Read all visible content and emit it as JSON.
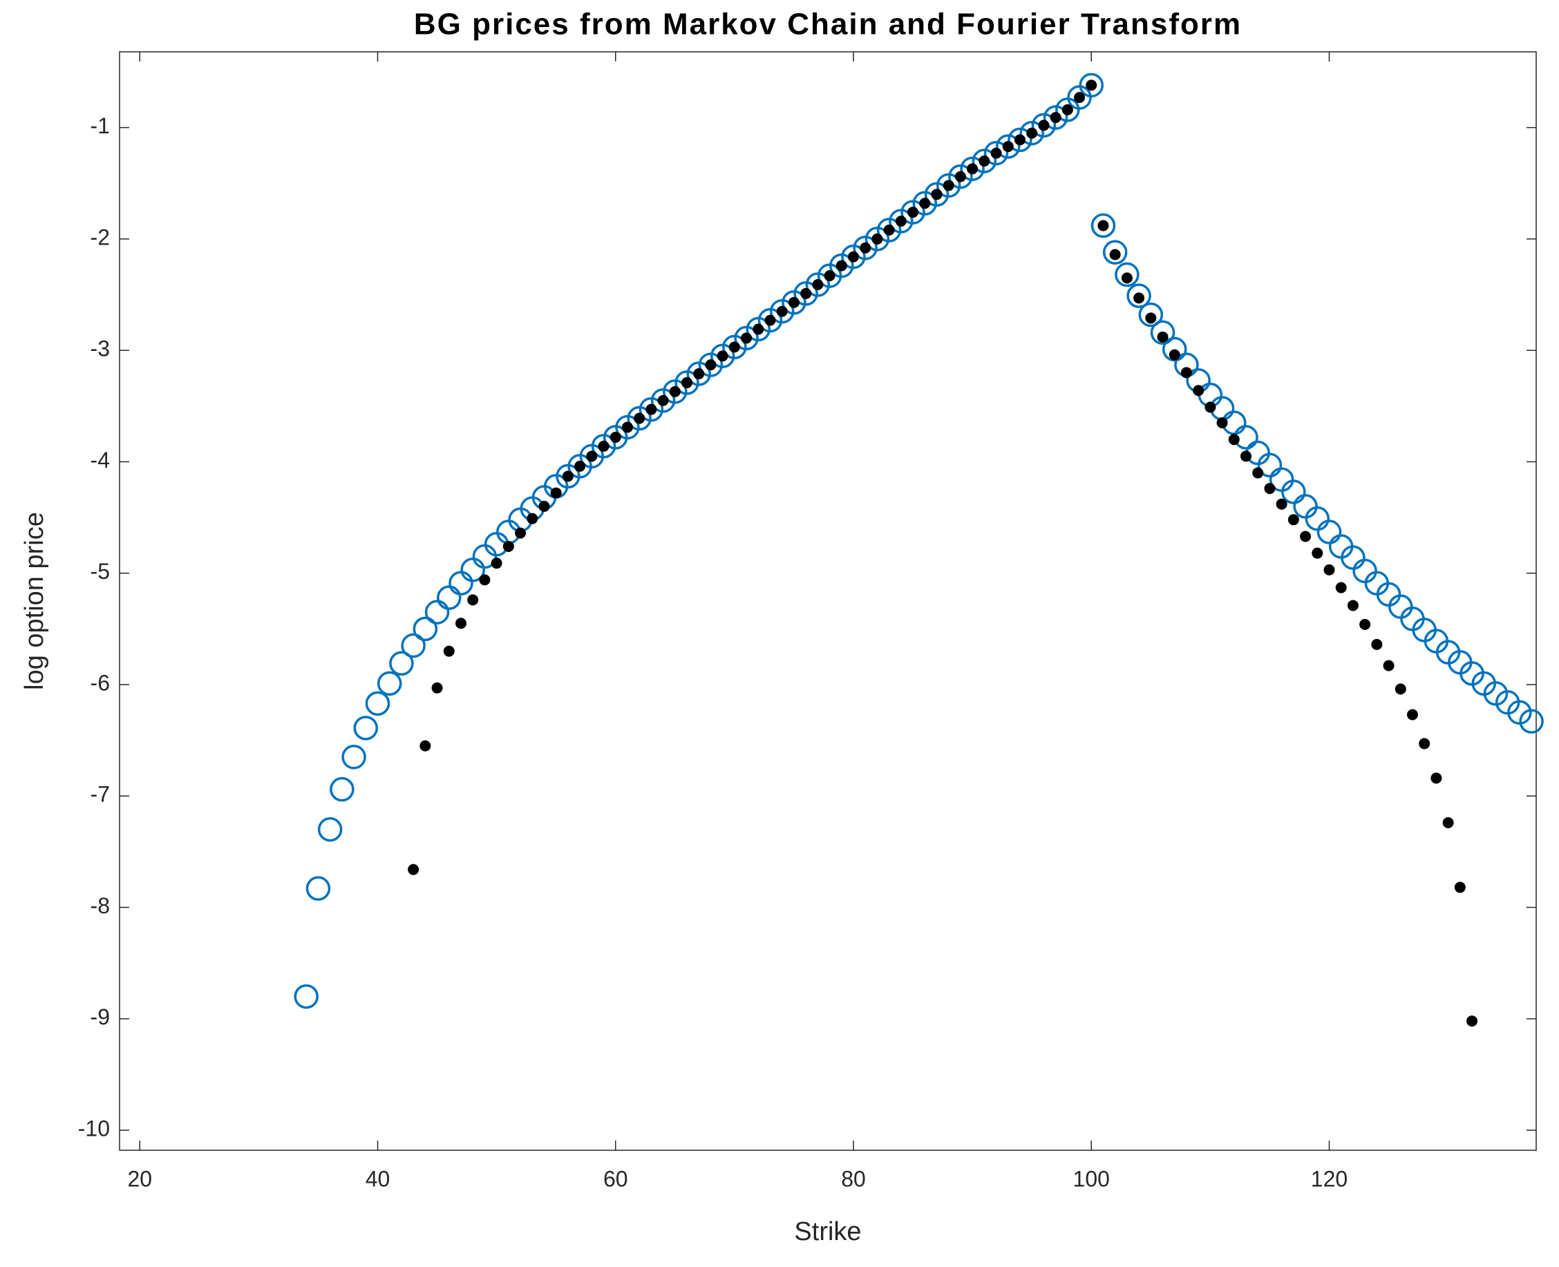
{
  "chart_data": {
    "type": "scatter",
    "title": "BG prices from Markov Chain and Fourier Transform",
    "x_label": "Strike",
    "y_label": "log option price",
    "xlim": [
      18.3,
      137.4
    ],
    "ylim": [
      -10.18,
      -0.32
    ],
    "xticks": [
      20,
      40,
      60,
      80,
      100,
      120
    ],
    "yticks": [
      -10,
      -9,
      -8,
      -7,
      -6,
      -5,
      -4,
      -3,
      -2,
      -1
    ],
    "grid": false,
    "series": [
      {
        "color": "#0072bd",
        "marker": "open-circle",
        "x": [
          34,
          35,
          36,
          37,
          38,
          39,
          40,
          41,
          42,
          43,
          44,
          45,
          46,
          47,
          48,
          49,
          50,
          51,
          52,
          53,
          54,
          55,
          56,
          57,
          58,
          59,
          60,
          61,
          62,
          63,
          64,
          65,
          66,
          67,
          68,
          69,
          70,
          71,
          72,
          73,
          74,
          75,
          76,
          77,
          78,
          79,
          80,
          81,
          82,
          83,
          84,
          85,
          86,
          87,
          88,
          89,
          90,
          91,
          92,
          93,
          94,
          95,
          96,
          97,
          98,
          99,
          100,
          101,
          102,
          103,
          104,
          105,
          106,
          107,
          108,
          109,
          110,
          111,
          112,
          113,
          114,
          115,
          116,
          117,
          118,
          119,
          120,
          121,
          122,
          123,
          124,
          125,
          126,
          127,
          128,
          129,
          130,
          131,
          132,
          133,
          134,
          135,
          136,
          137
        ],
        "values": [
          -8.8,
          -7.83,
          -7.3,
          -6.94,
          -6.65,
          -6.39,
          -6.17,
          -5.99,
          -5.81,
          -5.65,
          -5.5,
          -5.35,
          -5.22,
          -5.09,
          -4.97,
          -4.85,
          -4.74,
          -4.63,
          -4.52,
          -4.42,
          -4.32,
          -4.22,
          -4.13,
          -4.04,
          -3.95,
          -3.86,
          -3.78,
          -3.69,
          -3.61,
          -3.53,
          -3.45,
          -3.37,
          -3.29,
          -3.21,
          -3.13,
          -3.05,
          -2.97,
          -2.89,
          -2.81,
          -2.73,
          -2.65,
          -2.57,
          -2.49,
          -2.41,
          -2.33,
          -2.24,
          -2.16,
          -2.08,
          -2.0,
          -1.92,
          -1.84,
          -1.76,
          -1.68,
          -1.6,
          -1.52,
          -1.44,
          -1.37,
          -1.3,
          -1.23,
          -1.17,
          -1.11,
          -1.05,
          -0.98,
          -0.91,
          -0.84,
          -0.73,
          -0.62,
          -1.88,
          -2.12,
          -2.32,
          -2.51,
          -2.68,
          -2.84,
          -2.99,
          -3.13,
          -3.27,
          -3.4,
          -3.52,
          -3.65,
          -3.78,
          -3.92,
          -4.03,
          -4.16,
          -4.27,
          -4.4,
          -4.51,
          -4.63,
          -4.76,
          -4.86,
          -4.98,
          -5.09,
          -5.19,
          -5.3,
          -5.41,
          -5.51,
          -5.61,
          -5.71,
          -5.8,
          -5.9,
          -5.99,
          -6.08,
          -6.16,
          -6.25,
          -6.33
        ]
      },
      {
        "color": "#000000",
        "marker": "filled-dot",
        "x": [
          43,
          44,
          45,
          46,
          47,
          48,
          49,
          50,
          51,
          52,
          53,
          54,
          55,
          56,
          57,
          58,
          59,
          60,
          61,
          62,
          63,
          64,
          65,
          66,
          67,
          68,
          69,
          70,
          71,
          72,
          73,
          74,
          75,
          76,
          77,
          78,
          79,
          80,
          81,
          82,
          83,
          84,
          85,
          86,
          87,
          88,
          89,
          90,
          91,
          92,
          93,
          94,
          95,
          96,
          97,
          98,
          99,
          100,
          101,
          102,
          103,
          104,
          105,
          106,
          107,
          108,
          109,
          110,
          111,
          112,
          113,
          114,
          115,
          116,
          117,
          118,
          119,
          120,
          121,
          122,
          123,
          124,
          125,
          126,
          127,
          128,
          129,
          130,
          131,
          132
        ],
        "values": [
          -7.66,
          -6.55,
          -6.03,
          -5.7,
          -5.45,
          -5.24,
          -5.06,
          -4.91,
          -4.76,
          -4.64,
          -4.51,
          -4.4,
          -4.28,
          -4.13,
          -4.04,
          -3.95,
          -3.86,
          -3.78,
          -3.69,
          -3.61,
          -3.53,
          -3.45,
          -3.37,
          -3.29,
          -3.21,
          -3.13,
          -3.05,
          -2.97,
          -2.89,
          -2.81,
          -2.73,
          -2.65,
          -2.57,
          -2.49,
          -2.41,
          -2.33,
          -2.24,
          -2.16,
          -2.08,
          -2.0,
          -1.92,
          -1.84,
          -1.76,
          -1.68,
          -1.6,
          -1.52,
          -1.44,
          -1.37,
          -1.3,
          -1.23,
          -1.17,
          -1.11,
          -1.05,
          -0.98,
          -0.91,
          -0.84,
          -0.73,
          -0.62,
          -1.88,
          -2.14,
          -2.35,
          -2.53,
          -2.71,
          -2.88,
          -3.04,
          -3.2,
          -3.36,
          -3.51,
          -3.65,
          -3.8,
          -3.95,
          -4.1,
          -4.24,
          -4.38,
          -4.52,
          -4.67,
          -4.82,
          -4.97,
          -5.13,
          -5.29,
          -5.46,
          -5.64,
          -5.83,
          -6.04,
          -6.27,
          -6.53,
          -6.84,
          -7.24,
          -7.82,
          -9.02
        ]
      }
    ]
  }
}
